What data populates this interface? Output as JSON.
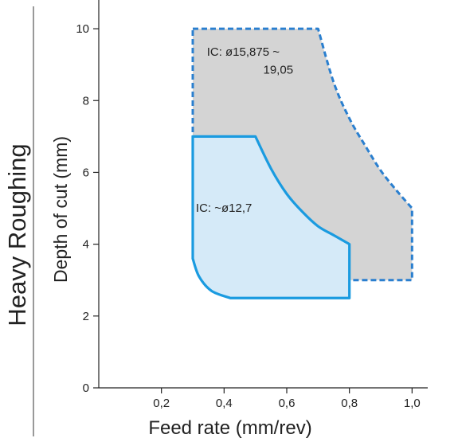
{
  "side_label": "Heavy Roughing",
  "chart_data": {
    "type": "area",
    "xlabel": "Feed rate (mm/rev)",
    "ylabel": "Depth of cut (mm)",
    "xlim": [
      0,
      1.05
    ],
    "ylim": [
      0,
      10.8
    ],
    "xticks": [
      0.2,
      0.4,
      0.6,
      0.8,
      1.0
    ],
    "xtick_labels": [
      "0,2",
      "0,4",
      "0,6",
      "0,8",
      "1,0"
    ],
    "yticks": [
      0,
      2,
      4,
      6,
      8,
      10
    ],
    "ytick_labels": [
      "0",
      "2",
      "4",
      "6",
      "8",
      "10"
    ],
    "grid": false,
    "series": [
      {
        "name": "IC: ø15,875 ~ 19,05",
        "label_lines": [
          "IC: ø15,875 ~",
          "19,05"
        ],
        "style": "dashed",
        "stroke": "#2a7fcf",
        "fill": "#d4d4d4",
        "boundary": [
          [
            0.3,
            10.0
          ],
          [
            0.7,
            10.0
          ],
          [
            0.75,
            8.5
          ],
          [
            0.8,
            7.5
          ],
          [
            0.85,
            6.75
          ],
          [
            0.9,
            6.05
          ],
          [
            0.95,
            5.5
          ],
          [
            1.0,
            5.0
          ],
          [
            1.0,
            3.0
          ],
          [
            0.38,
            3.0
          ],
          [
            0.33,
            3.4
          ],
          [
            0.3,
            4.0
          ],
          [
            0.3,
            10.0
          ]
        ]
      },
      {
        "name": "IC: ~ø12,7",
        "label_lines": [
          "IC: ~ø12,7"
        ],
        "style": "solid",
        "stroke": "#1a9be0",
        "fill": "#d5eaf8",
        "boundary": [
          [
            0.3,
            7.0
          ],
          [
            0.5,
            7.0
          ],
          [
            0.55,
            6.1
          ],
          [
            0.6,
            5.4
          ],
          [
            0.65,
            4.9
          ],
          [
            0.7,
            4.5
          ],
          [
            0.75,
            4.25
          ],
          [
            0.8,
            4.0
          ],
          [
            0.8,
            2.5
          ],
          [
            0.42,
            2.5
          ],
          [
            0.36,
            2.7
          ],
          [
            0.32,
            3.1
          ],
          [
            0.3,
            3.6
          ],
          [
            0.3,
            7.0
          ]
        ]
      }
    ]
  }
}
